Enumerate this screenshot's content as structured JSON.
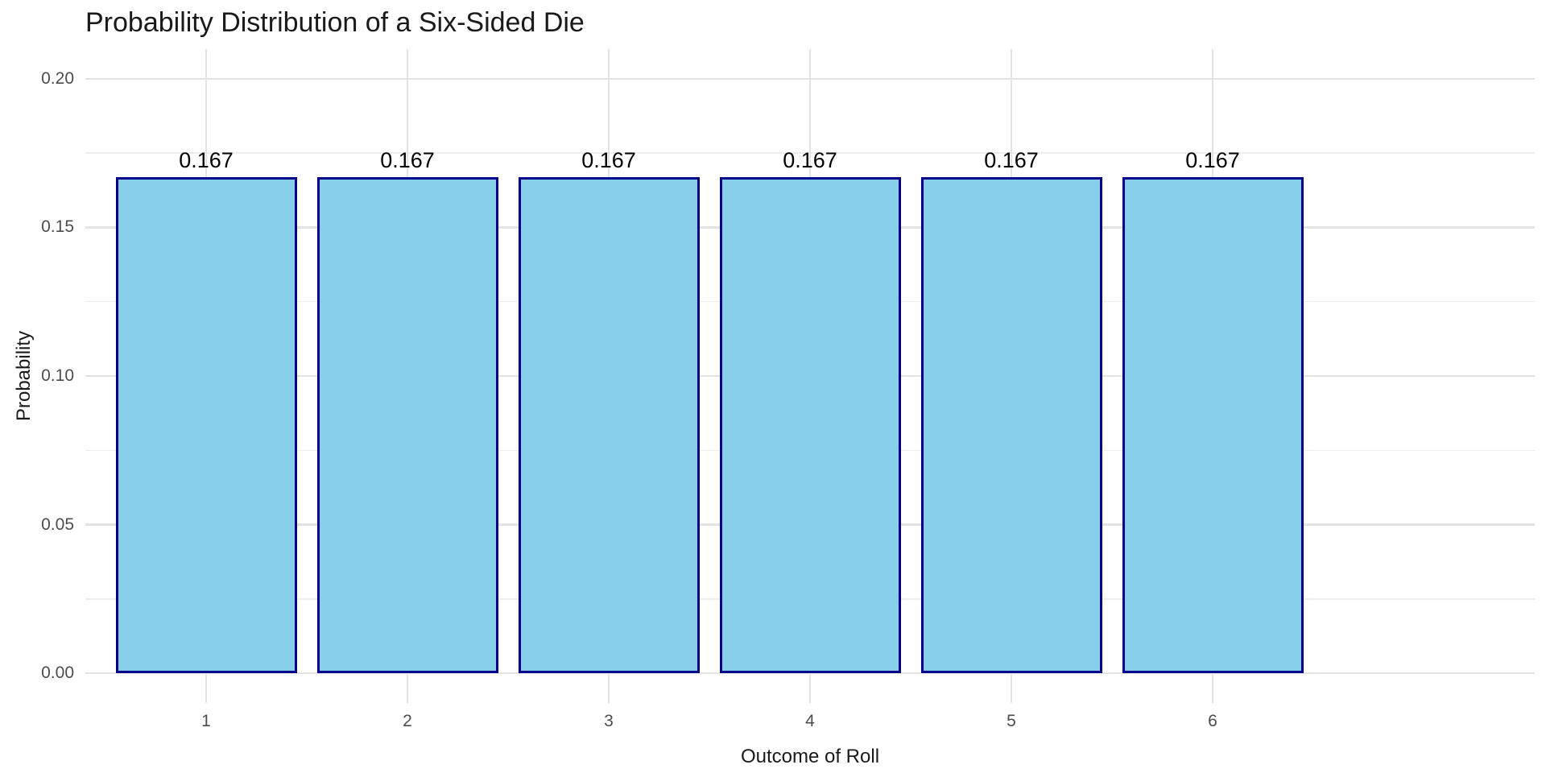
{
  "chart_data": {
    "type": "bar",
    "title": "Probability Distribution of a Six-Sided Die",
    "xlabel": "Outcome of Roll",
    "ylabel": "Probability",
    "categories": [
      "1",
      "2",
      "3",
      "4",
      "5",
      "6"
    ],
    "values": [
      0.167,
      0.167,
      0.167,
      0.167,
      0.167,
      0.167
    ],
    "bar_labels": [
      "0.167",
      "0.167",
      "0.167",
      "0.167",
      "0.167",
      "0.167"
    ],
    "y_ticks": {
      "values": [
        0.0,
        0.05,
        0.1,
        0.15,
        0.2
      ],
      "labels": [
        "0.00",
        "0.05",
        "0.10",
        "0.15",
        "0.20"
      ]
    },
    "y_minor_ticks": [
      0.025,
      0.075,
      0.125,
      0.175
    ],
    "ylim": [
      -0.01,
      0.21
    ],
    "grid": "horizontal major+minor, vertical major at category centers",
    "legend": "none",
    "bar_width_fraction": 0.9,
    "colors": {
      "bar_fill": "#87CEEB",
      "bar_border": "#00008B",
      "grid_major": "#e3e3e3",
      "grid_minor": "#ededed",
      "tick_label": "#4d4d4d",
      "title_text": "#1a1a1a",
      "bar_label_text": "#000000",
      "background": "#ffffff"
    }
  }
}
